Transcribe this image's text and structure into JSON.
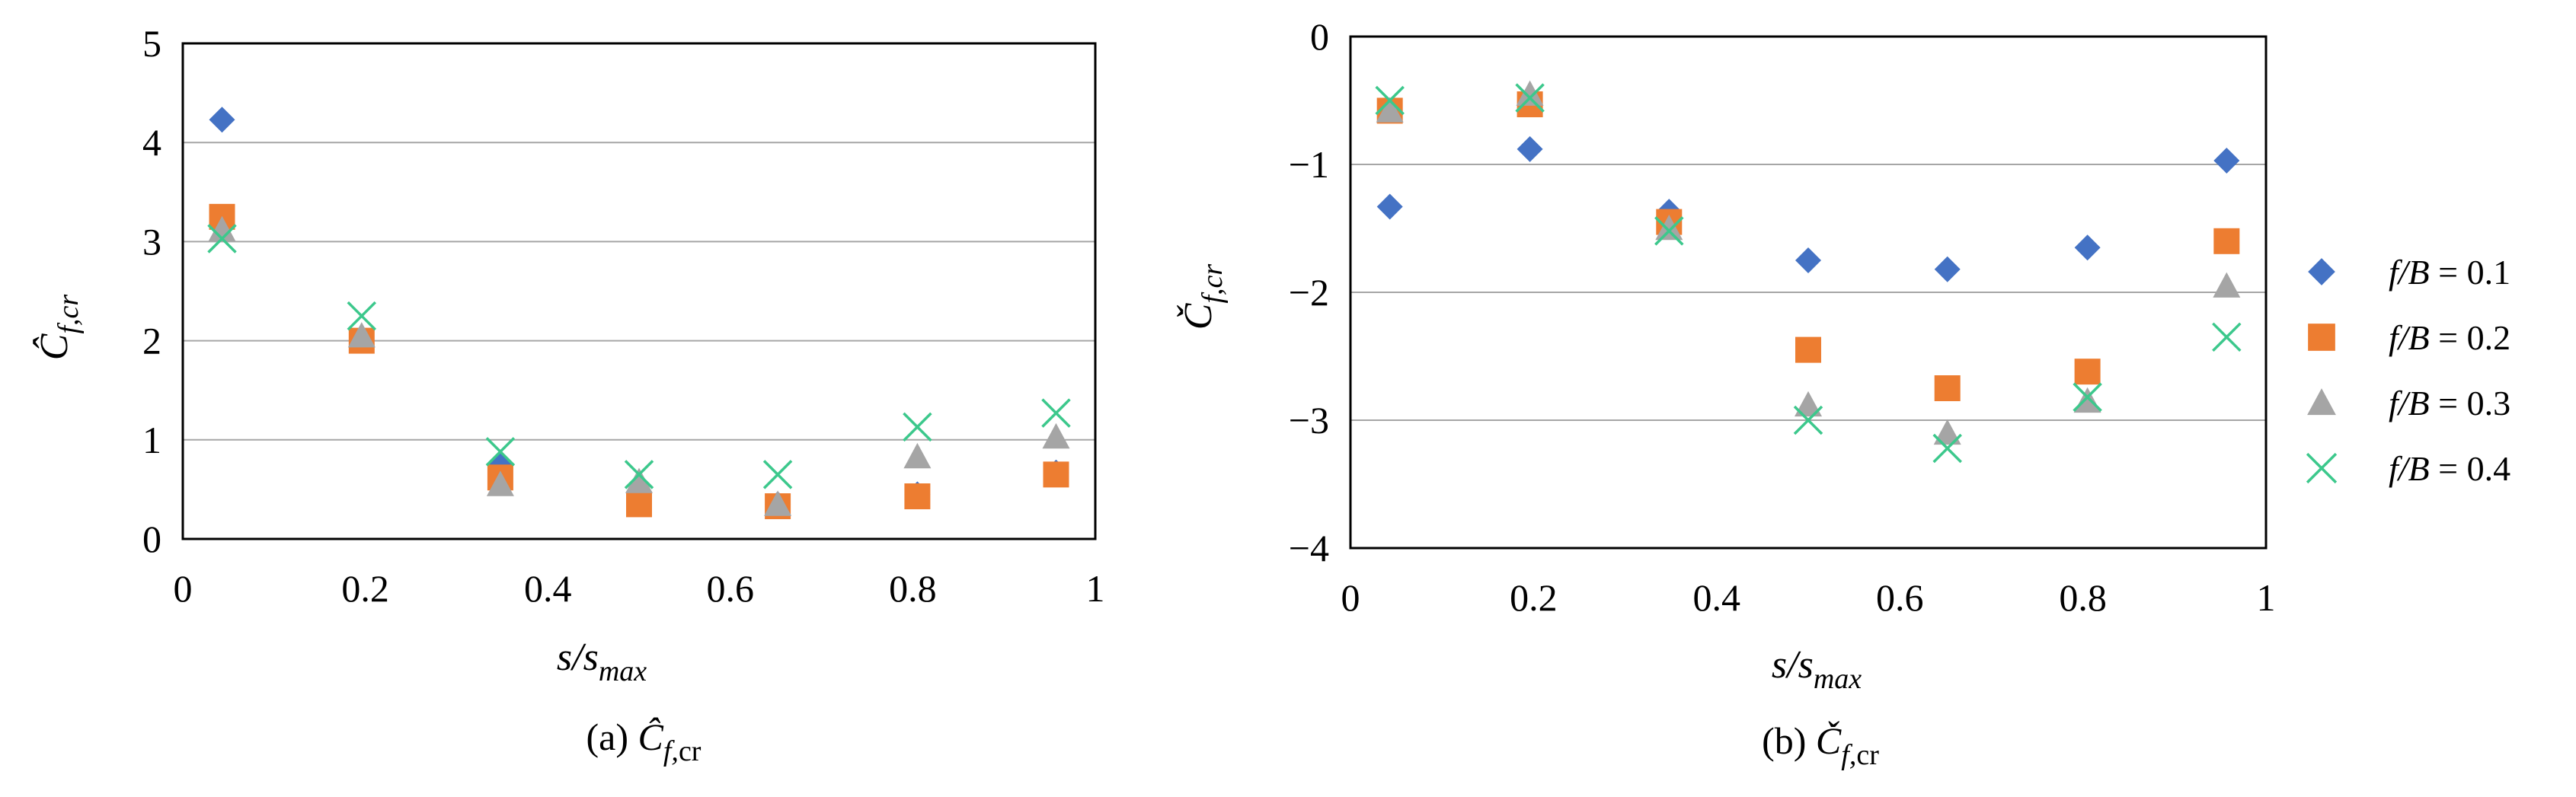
{
  "chart_data": [
    {
      "type": "scatter",
      "panel": "a",
      "title": "",
      "caption_prefix": "(a) ",
      "caption_symbol": "Ĉ",
      "caption_sub": "f,",
      "caption_sub2": "cr",
      "xlabel_main": "s",
      "xlabel_slash": "/s",
      "xlabel_sub": "max",
      "ylabel_main": "Ĉ",
      "ylabel_sub": "f,cr",
      "xlim": [
        0,
        1
      ],
      "ylim": [
        0,
        5
      ],
      "xticks": [
        {
          "value": 0,
          "label": "0"
        },
        {
          "value": 0.2,
          "label": "0.2"
        },
        {
          "value": 0.4,
          "label": "0.4"
        },
        {
          "value": 0.6,
          "label": "0.6"
        },
        {
          "value": 0.8,
          "label": "0.8"
        },
        {
          "value": 1,
          "label": "1"
        }
      ],
      "yticks": [
        {
          "value": 0,
          "label": "0"
        },
        {
          "value": 1,
          "label": "1"
        },
        {
          "value": 2,
          "label": "2"
        },
        {
          "value": 3,
          "label": "3"
        },
        {
          "value": 4,
          "label": "4"
        },
        {
          "value": 5,
          "label": "5"
        }
      ],
      "grid": "horizontal",
      "x": [
        0.043,
        0.196,
        0.348,
        0.5,
        0.652,
        0.805,
        0.957
      ],
      "series": [
        {
          "name": "f/B = 0.1",
          "key": "s1",
          "values": [
            4.23,
            2.0,
            0.75,
            0.45,
            0.35,
            0.45,
            0.67
          ]
        },
        {
          "name": "f/B = 0.2",
          "key": "s2",
          "values": [
            3.25,
            2.0,
            0.62,
            0.35,
            0.33,
            0.43,
            0.65
          ]
        },
        {
          "name": "f/B = 0.3",
          "key": "s3",
          "values": [
            3.12,
            2.05,
            0.55,
            0.58,
            0.35,
            0.83,
            1.03
          ]
        },
        {
          "name": "f/B = 0.4",
          "key": "s4",
          "values": [
            3.03,
            2.25,
            0.88,
            0.65,
            0.65,
            1.13,
            1.27
          ]
        }
      ]
    },
    {
      "type": "scatter",
      "panel": "b",
      "title": "",
      "caption_prefix": "(b) ",
      "caption_symbol": "Č",
      "caption_sub": "f,",
      "caption_sub2": "cr",
      "xlabel_main": "s",
      "xlabel_slash": "/s",
      "xlabel_sub": "max",
      "ylabel_main": "Č",
      "ylabel_sub": "f,cr",
      "xlim": [
        0,
        1
      ],
      "ylim": [
        -4,
        0
      ],
      "xticks": [
        {
          "value": 0,
          "label": "0"
        },
        {
          "value": 0.2,
          "label": "0.2"
        },
        {
          "value": 0.4,
          "label": "0.4"
        },
        {
          "value": 0.6,
          "label": "0.6"
        },
        {
          "value": 0.8,
          "label": "0.8"
        },
        {
          "value": 1,
          "label": "1"
        }
      ],
      "yticks": [
        {
          "value": 0,
          "label": "0"
        },
        {
          "value": -1,
          "label": "−1"
        },
        {
          "value": -2,
          "label": "−2"
        },
        {
          "value": -3,
          "label": "−3"
        },
        {
          "value": -4,
          "label": "−4"
        }
      ],
      "grid": "horizontal",
      "x": [
        0.043,
        0.196,
        0.348,
        0.5,
        0.652,
        0.805,
        0.957
      ],
      "series": [
        {
          "name": "f/B = 0.1",
          "key": "s1",
          "values": [
            -1.33,
            -0.88,
            -1.37,
            -1.75,
            -1.82,
            -1.65,
            -0.97
          ]
        },
        {
          "name": "f/B = 0.2",
          "key": "s2",
          "values": [
            -0.58,
            -0.53,
            -1.45,
            -2.45,
            -2.75,
            -2.62,
            -1.6
          ]
        },
        {
          "name": "f/B = 0.3",
          "key": "s3",
          "values": [
            -0.58,
            -0.45,
            -1.5,
            -2.88,
            -3.1,
            -2.85,
            -1.95
          ]
        },
        {
          "name": "f/B = 0.4",
          "key": "s4",
          "values": [
            -0.5,
            -0.48,
            -1.52,
            -3.0,
            -3.22,
            -2.82,
            -2.35
          ]
        }
      ]
    }
  ],
  "legend": [
    {
      "key": "s1",
      "marker": "diamond",
      "label_var": "f/B",
      "label_rest": " = 0.1"
    },
    {
      "key": "s2",
      "marker": "square",
      "label_var": "f/B",
      "label_rest": " = 0.2"
    },
    {
      "key": "s3",
      "marker": "triangle",
      "label_var": "f/B",
      "label_rest": " = 0.3"
    },
    {
      "key": "s4",
      "marker": "cross",
      "label_var": "f/B",
      "label_rest": " = 0.4"
    }
  ],
  "colors": {
    "s1": "#4472C4",
    "s2": "#ED7D31",
    "s3": "#A5A5A5",
    "s4": "#3CC88C",
    "grid": "#A6A6A6",
    "frame": "#000000"
  }
}
